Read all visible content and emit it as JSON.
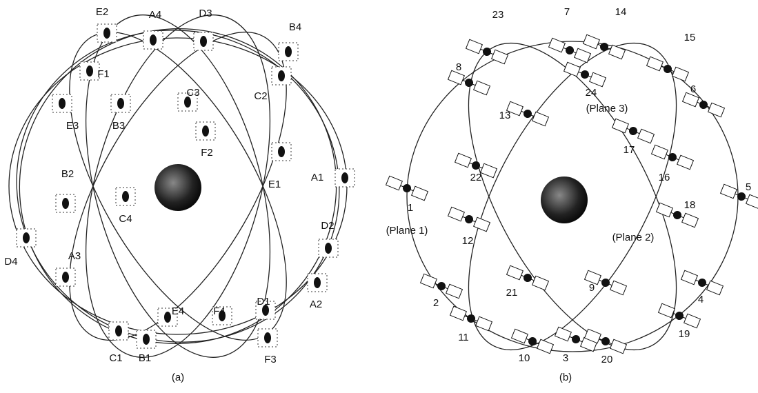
{
  "panel_a": {
    "caption": "(a)",
    "labels": [
      "E2",
      "A4",
      "D3",
      "B4",
      "F1",
      "C3",
      "C2",
      "E3",
      "B3",
      "F2",
      "E1",
      "A1",
      "B2",
      "C4",
      "D2",
      "D4",
      "A3",
      "E4",
      "F4",
      "D1",
      "A2",
      "C1",
      "B1",
      "F3"
    ]
  },
  "panel_b": {
    "caption": "(b)",
    "labels": [
      "23",
      "7",
      "14",
      "15",
      "8",
      "24",
      "6",
      "13",
      "17",
      "22",
      "16",
      "5",
      "1",
      "18",
      "12",
      "21",
      "9",
      "2",
      "4",
      "11",
      "19",
      "10",
      "3",
      "20"
    ],
    "plane_labels": [
      "(Plane 3)",
      "(Plane 1)",
      "(Plane 2)"
    ]
  }
}
